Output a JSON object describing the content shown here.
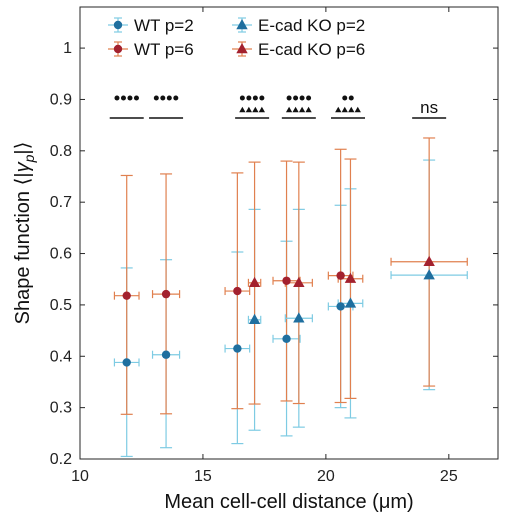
{
  "chart_data": {
    "type": "scatter",
    "xlabel": "Mean cell-cell distance (μm)",
    "ylabel": "Shape function ⟨|γ_p|⟩",
    "xlim": [
      10,
      27
    ],
    "ylim": [
      0.2,
      1.08
    ],
    "xticks": [
      10,
      15,
      20,
      25
    ],
    "yticks": [
      0.2,
      0.3,
      0.4,
      0.5,
      0.6,
      0.7,
      0.8,
      0.9,
      1
    ],
    "grid": false,
    "legend_position": "top-left",
    "colors": {
      "p2_marker": "#1f6f9f",
      "p2_bar": "#7ecbe3",
      "p6_marker": "#a3212e",
      "p6_bar": "#e0804f"
    },
    "series": [
      {
        "name": "WT p=2",
        "marker": "circle",
        "points": [
          {
            "x": 11.9,
            "y": 0.388,
            "xerr": 0.5,
            "ylo": 0.205,
            "yhi": 0.572
          },
          {
            "x": 13.5,
            "y": 0.403,
            "xerr": 0.55,
            "ylo": 0.222,
            "yhi": 0.588
          },
          {
            "x": 16.4,
            "y": 0.415,
            "xerr": 0.5,
            "ylo": 0.23,
            "yhi": 0.603
          },
          {
            "x": 18.4,
            "y": 0.434,
            "xerr": 0.55,
            "ylo": 0.245,
            "yhi": 0.624
          },
          {
            "x": 20.6,
            "y": 0.497,
            "xerr": 0.5,
            "ylo": 0.3,
            "yhi": 0.694
          }
        ]
      },
      {
        "name": "WT p=6",
        "marker": "circle",
        "points": [
          {
            "x": 11.9,
            "y": 0.518,
            "xerr": 0.5,
            "ylo": 0.287,
            "yhi": 0.752
          },
          {
            "x": 13.5,
            "y": 0.521,
            "xerr": 0.55,
            "ylo": 0.288,
            "yhi": 0.755
          },
          {
            "x": 16.4,
            "y": 0.527,
            "xerr": 0.5,
            "ylo": 0.298,
            "yhi": 0.757
          },
          {
            "x": 18.4,
            "y": 0.547,
            "xerr": 0.55,
            "ylo": 0.313,
            "yhi": 0.78
          },
          {
            "x": 20.6,
            "y": 0.557,
            "xerr": 0.5,
            "ylo": 0.31,
            "yhi": 0.803
          }
        ]
      },
      {
        "name": "E-cad KO p=2",
        "marker": "triangle",
        "points": [
          {
            "x": 17.1,
            "y": 0.471,
            "xerr": 0.25,
            "ylo": 0.256,
            "yhi": 0.686
          },
          {
            "x": 18.9,
            "y": 0.474,
            "xerr": 0.55,
            "ylo": 0.262,
            "yhi": 0.686
          },
          {
            "x": 21.0,
            "y": 0.503,
            "xerr": 0.5,
            "ylo": 0.28,
            "yhi": 0.726
          },
          {
            "x": 24.2,
            "y": 0.558,
            "xerr": 1.55,
            "ylo": 0.335,
            "yhi": 0.782
          }
        ]
      },
      {
        "name": "E-cad KO p=6",
        "marker": "triangle",
        "points": [
          {
            "x": 17.1,
            "y": 0.543,
            "xerr": 0.25,
            "ylo": 0.307,
            "yhi": 0.778
          },
          {
            "x": 18.9,
            "y": 0.543,
            "xerr": 0.55,
            "ylo": 0.308,
            "yhi": 0.778
          },
          {
            "x": 21.0,
            "y": 0.551,
            "xerr": 0.5,
            "ylo": 0.318,
            "yhi": 0.784
          },
          {
            "x": 24.2,
            "y": 0.584,
            "xerr": 1.55,
            "ylo": 0.342,
            "yhi": 0.825
          }
        ]
      }
    ],
    "significance": [
      {
        "x": 11.9,
        "circles": 4,
        "triangles": 0,
        "label": ""
      },
      {
        "x": 13.5,
        "circles": 4,
        "triangles": 0,
        "label": ""
      },
      {
        "x": 17.0,
        "circles": 4,
        "triangles": 4,
        "label": ""
      },
      {
        "x": 18.9,
        "circles": 4,
        "triangles": 4,
        "label": ""
      },
      {
        "x": 20.9,
        "circles": 2,
        "triangles": 4,
        "label": ""
      },
      {
        "x": 24.2,
        "circles": 0,
        "triangles": 0,
        "label": "ns"
      }
    ]
  }
}
